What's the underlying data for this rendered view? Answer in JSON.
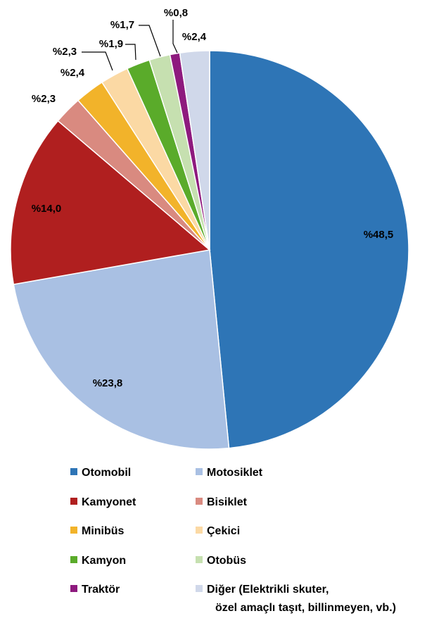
{
  "chart_data": {
    "type": "pie",
    "start_angle_deg": 0,
    "direction": "clockwise",
    "slices": [
      {
        "name": "Otomobil",
        "value": 48.5,
        "label": "%48,5",
        "color": "#2e75b6"
      },
      {
        "name": "Motosiklet",
        "value": 23.8,
        "label": "%23,8",
        "color": "#a9c0e3"
      },
      {
        "name": "Kamyonet",
        "value": 14.0,
        "label": "%14,0",
        "color": "#b01f1f"
      },
      {
        "name": "Bisiklet",
        "value": 2.3,
        "label": "%2,3",
        "color": "#d98a80"
      },
      {
        "name": "Minibüs",
        "value": 2.4,
        "label": "%2,4",
        "color": "#f2b32a"
      },
      {
        "name": "Çekici",
        "value": 2.3,
        "label": "%2,3",
        "color": "#fbd9a4"
      },
      {
        "name": "Kamyon",
        "value": 1.9,
        "label": "%1,9",
        "color": "#5aab2a"
      },
      {
        "name": "Otobüs",
        "value": 1.7,
        "label": "%1,7",
        "color": "#c6e0b0"
      },
      {
        "name": "Traktör",
        "value": 0.8,
        "label": "%0,8",
        "color": "#8e1a7e"
      },
      {
        "name": "Diğer (Elektrikli skuter,",
        "name_line2": "özel amaçlı taşıt, billinmeyen, vb.)",
        "value": 2.4,
        "label": "%2,4",
        "color": "#d0d8ea"
      }
    ],
    "legend": {
      "placement": "bottom",
      "columns": 2,
      "order": [
        "Otomobil",
        "Motosiklet",
        "Kamyonet",
        "Bisiklet",
        "Minibüs",
        "Çekici",
        "Kamyon",
        "Otobüs",
        "Traktör",
        "Diğer (Elektrikli skuter,"
      ]
    }
  }
}
